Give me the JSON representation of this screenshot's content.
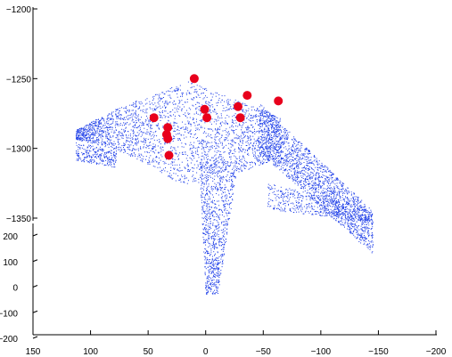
{
  "chart_data": {
    "type": "scatter",
    "projection": "3d",
    "title": "",
    "xlabel": "",
    "ylabel": "",
    "zlabel": "",
    "grid": false,
    "legend": "none",
    "x_axis": {
      "ticks": [
        150,
        100,
        50,
        0,
        -50,
        -100,
        -150,
        -200
      ],
      "range": [
        150,
        -200
      ]
    },
    "y_axis": {
      "ticks": [
        200,
        100,
        0,
        -100,
        -200
      ],
      "range": [
        200,
        -200
      ]
    },
    "z_axis": {
      "ticks": [
        -1200,
        -1250,
        -1300,
        -1350
      ],
      "range": [
        -1200,
        -1350
      ]
    },
    "x_tick_labels": [
      "150",
      "100",
      "50",
      "0",
      "−50",
      "−100",
      "−150",
      "−200"
    ],
    "y_tick_labels": [
      "200",
      "100",
      "0",
      "−100",
      "−200"
    ],
    "z_tick_labels": [
      "−1200",
      "−1250",
      "−1300",
      "−1350"
    ],
    "series": [
      {
        "color": "#1f3fe8",
        "marker": "small-point",
        "description_points_count": "dense"
      },
      {
        "color": "#e8001c",
        "marker": "large-dot",
        "values": [
          {
            "x": 13,
            "z": -1250
          },
          {
            "x": -33,
            "z": -1262
          },
          {
            "x": -60,
            "z": -1266
          },
          {
            "x": 4,
            "z": -1272
          },
          {
            "x": -25,
            "z": -1270
          },
          {
            "x": 48,
            "z": -1278
          },
          {
            "x": 2,
            "z": -1278
          },
          {
            "x": -27,
            "z": -1278
          },
          {
            "x": 36,
            "z": -1285
          },
          {
            "x": 37,
            "z": -1290
          },
          {
            "x": 36,
            "z": -1293
          },
          {
            "x": 35,
            "z": -1305
          }
        ]
      }
    ]
  }
}
